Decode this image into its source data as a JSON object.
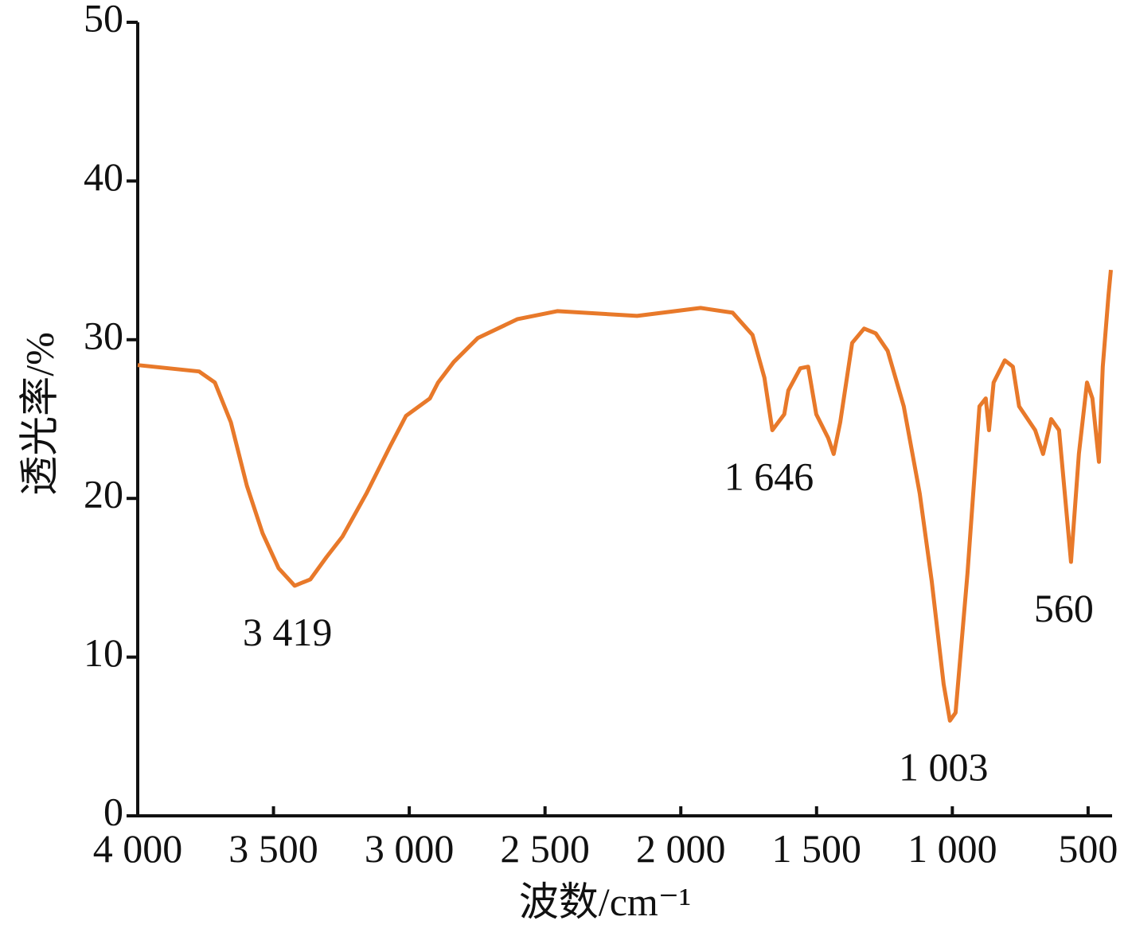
{
  "chart_data": {
    "type": "line",
    "xlabel": "波数/cm⁻¹",
    "ylabel": "透光率/%",
    "xlim": [
      4000,
      400
    ],
    "ylim": [
      0,
      50
    ],
    "xticks": [
      {
        "value": 4000,
        "label": "4 000"
      },
      {
        "value": 3500,
        "label": "3 500"
      },
      {
        "value": 3000,
        "label": "3 000"
      },
      {
        "value": 2500,
        "label": "2 500"
      },
      {
        "value": 2000,
        "label": "2 000"
      },
      {
        "value": 1500,
        "label": "1 500"
      },
      {
        "value": 1000,
        "label": "1 000"
      },
      500
    ],
    "yticks": [
      0,
      10,
      20,
      30,
      40,
      50
    ],
    "x": [
      4000,
      3774,
      3716,
      3657,
      3598,
      3540,
      3481,
      3422,
      3364,
      3305,
      3246,
      3158,
      3070,
      3012,
      2924,
      2894,
      2836,
      2748,
      2601,
      2455,
      2161,
      1927,
      1809,
      1736,
      1692,
      1663,
      1619,
      1604,
      1560,
      1531,
      1501,
      1457,
      1437,
      1413,
      1369,
      1325,
      1282,
      1238,
      1179,
      1120,
      1076,
      1032,
      1009,
      988,
      944,
      900,
      877,
      865,
      848,
      807,
      777,
      754,
      695,
      666,
      636,
      607,
      563,
      534,
      504,
      484,
      460,
      446,
      425,
      416
    ],
    "series": [
      {
        "color": "#e8792a",
        "values": [
          28.4,
          28.0,
          27.3,
          24.8,
          20.8,
          17.8,
          15.6,
          14.5,
          14.9,
          16.3,
          17.6,
          20.3,
          23.3,
          25.2,
          26.3,
          27.3,
          28.6,
          30.1,
          31.3,
          31.8,
          31.5,
          32.0,
          31.7,
          30.3,
          27.6,
          24.3,
          25.3,
          26.8,
          28.2,
          28.3,
          25.3,
          23.8,
          22.8,
          24.8,
          29.8,
          30.7,
          30.4,
          29.3,
          25.8,
          20.3,
          14.8,
          8.3,
          6.0,
          6.5,
          15.3,
          25.8,
          26.3,
          24.3,
          27.3,
          28.7,
          28.3,
          25.8,
          24.3,
          22.8,
          25.0,
          24.3,
          16.0,
          22.8,
          27.3,
          26.3,
          22.3,
          28.3,
          32.8,
          34.4
        ]
      }
    ],
    "annotations": [
      {
        "x": 3419,
        "text": "3 419"
      },
      {
        "x": 1646,
        "text": "1 646"
      },
      {
        "x": 1003,
        "text": "1 003"
      },
      {
        "x": 560,
        "text": "560"
      }
    ]
  }
}
